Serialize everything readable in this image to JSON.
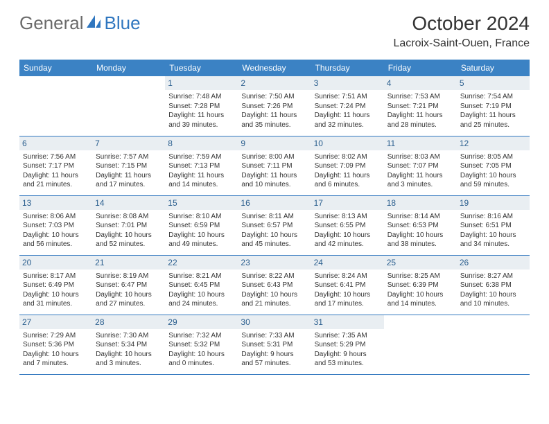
{
  "brand": {
    "part1": "General",
    "part2": "Blue"
  },
  "title": "October 2024",
  "location": "Lacroix-Saint-Ouen, France",
  "colors": {
    "header_bg": "#3b82c4",
    "header_text": "#ffffff",
    "daynum_bg": "#e9eef2",
    "daynum_text": "#2a5e8e",
    "rule": "#2f76bf",
    "body_text": "#333333",
    "logo_gray": "#6a6a6a",
    "logo_blue": "#2f76bf"
  },
  "weekdays": [
    "Sunday",
    "Monday",
    "Tuesday",
    "Wednesday",
    "Thursday",
    "Friday",
    "Saturday"
  ],
  "weeks": [
    [
      null,
      null,
      {
        "n": "1",
        "sr": "Sunrise: 7:48 AM",
        "ss": "Sunset: 7:28 PM",
        "d1": "Daylight: 11 hours",
        "d2": "and 39 minutes."
      },
      {
        "n": "2",
        "sr": "Sunrise: 7:50 AM",
        "ss": "Sunset: 7:26 PM",
        "d1": "Daylight: 11 hours",
        "d2": "and 35 minutes."
      },
      {
        "n": "3",
        "sr": "Sunrise: 7:51 AM",
        "ss": "Sunset: 7:24 PM",
        "d1": "Daylight: 11 hours",
        "d2": "and 32 minutes."
      },
      {
        "n": "4",
        "sr": "Sunrise: 7:53 AM",
        "ss": "Sunset: 7:21 PM",
        "d1": "Daylight: 11 hours",
        "d2": "and 28 minutes."
      },
      {
        "n": "5",
        "sr": "Sunrise: 7:54 AM",
        "ss": "Sunset: 7:19 PM",
        "d1": "Daylight: 11 hours",
        "d2": "and 25 minutes."
      }
    ],
    [
      {
        "n": "6",
        "sr": "Sunrise: 7:56 AM",
        "ss": "Sunset: 7:17 PM",
        "d1": "Daylight: 11 hours",
        "d2": "and 21 minutes."
      },
      {
        "n": "7",
        "sr": "Sunrise: 7:57 AM",
        "ss": "Sunset: 7:15 PM",
        "d1": "Daylight: 11 hours",
        "d2": "and 17 minutes."
      },
      {
        "n": "8",
        "sr": "Sunrise: 7:59 AM",
        "ss": "Sunset: 7:13 PM",
        "d1": "Daylight: 11 hours",
        "d2": "and 14 minutes."
      },
      {
        "n": "9",
        "sr": "Sunrise: 8:00 AM",
        "ss": "Sunset: 7:11 PM",
        "d1": "Daylight: 11 hours",
        "d2": "and 10 minutes."
      },
      {
        "n": "10",
        "sr": "Sunrise: 8:02 AM",
        "ss": "Sunset: 7:09 PM",
        "d1": "Daylight: 11 hours",
        "d2": "and 6 minutes."
      },
      {
        "n": "11",
        "sr": "Sunrise: 8:03 AM",
        "ss": "Sunset: 7:07 PM",
        "d1": "Daylight: 11 hours",
        "d2": "and 3 minutes."
      },
      {
        "n": "12",
        "sr": "Sunrise: 8:05 AM",
        "ss": "Sunset: 7:05 PM",
        "d1": "Daylight: 10 hours",
        "d2": "and 59 minutes."
      }
    ],
    [
      {
        "n": "13",
        "sr": "Sunrise: 8:06 AM",
        "ss": "Sunset: 7:03 PM",
        "d1": "Daylight: 10 hours",
        "d2": "and 56 minutes."
      },
      {
        "n": "14",
        "sr": "Sunrise: 8:08 AM",
        "ss": "Sunset: 7:01 PM",
        "d1": "Daylight: 10 hours",
        "d2": "and 52 minutes."
      },
      {
        "n": "15",
        "sr": "Sunrise: 8:10 AM",
        "ss": "Sunset: 6:59 PM",
        "d1": "Daylight: 10 hours",
        "d2": "and 49 minutes."
      },
      {
        "n": "16",
        "sr": "Sunrise: 8:11 AM",
        "ss": "Sunset: 6:57 PM",
        "d1": "Daylight: 10 hours",
        "d2": "and 45 minutes."
      },
      {
        "n": "17",
        "sr": "Sunrise: 8:13 AM",
        "ss": "Sunset: 6:55 PM",
        "d1": "Daylight: 10 hours",
        "d2": "and 42 minutes."
      },
      {
        "n": "18",
        "sr": "Sunrise: 8:14 AM",
        "ss": "Sunset: 6:53 PM",
        "d1": "Daylight: 10 hours",
        "d2": "and 38 minutes."
      },
      {
        "n": "19",
        "sr": "Sunrise: 8:16 AM",
        "ss": "Sunset: 6:51 PM",
        "d1": "Daylight: 10 hours",
        "d2": "and 34 minutes."
      }
    ],
    [
      {
        "n": "20",
        "sr": "Sunrise: 8:17 AM",
        "ss": "Sunset: 6:49 PM",
        "d1": "Daylight: 10 hours",
        "d2": "and 31 minutes."
      },
      {
        "n": "21",
        "sr": "Sunrise: 8:19 AM",
        "ss": "Sunset: 6:47 PM",
        "d1": "Daylight: 10 hours",
        "d2": "and 27 minutes."
      },
      {
        "n": "22",
        "sr": "Sunrise: 8:21 AM",
        "ss": "Sunset: 6:45 PM",
        "d1": "Daylight: 10 hours",
        "d2": "and 24 minutes."
      },
      {
        "n": "23",
        "sr": "Sunrise: 8:22 AM",
        "ss": "Sunset: 6:43 PM",
        "d1": "Daylight: 10 hours",
        "d2": "and 21 minutes."
      },
      {
        "n": "24",
        "sr": "Sunrise: 8:24 AM",
        "ss": "Sunset: 6:41 PM",
        "d1": "Daylight: 10 hours",
        "d2": "and 17 minutes."
      },
      {
        "n": "25",
        "sr": "Sunrise: 8:25 AM",
        "ss": "Sunset: 6:39 PM",
        "d1": "Daylight: 10 hours",
        "d2": "and 14 minutes."
      },
      {
        "n": "26",
        "sr": "Sunrise: 8:27 AM",
        "ss": "Sunset: 6:38 PM",
        "d1": "Daylight: 10 hours",
        "d2": "and 10 minutes."
      }
    ],
    [
      {
        "n": "27",
        "sr": "Sunrise: 7:29 AM",
        "ss": "Sunset: 5:36 PM",
        "d1": "Daylight: 10 hours",
        "d2": "and 7 minutes."
      },
      {
        "n": "28",
        "sr": "Sunrise: 7:30 AM",
        "ss": "Sunset: 5:34 PM",
        "d1": "Daylight: 10 hours",
        "d2": "and 3 minutes."
      },
      {
        "n": "29",
        "sr": "Sunrise: 7:32 AM",
        "ss": "Sunset: 5:32 PM",
        "d1": "Daylight: 10 hours",
        "d2": "and 0 minutes."
      },
      {
        "n": "30",
        "sr": "Sunrise: 7:33 AM",
        "ss": "Sunset: 5:31 PM",
        "d1": "Daylight: 9 hours",
        "d2": "and 57 minutes."
      },
      {
        "n": "31",
        "sr": "Sunrise: 7:35 AM",
        "ss": "Sunset: 5:29 PM",
        "d1": "Daylight: 9 hours",
        "d2": "and 53 minutes."
      },
      null,
      null
    ]
  ]
}
